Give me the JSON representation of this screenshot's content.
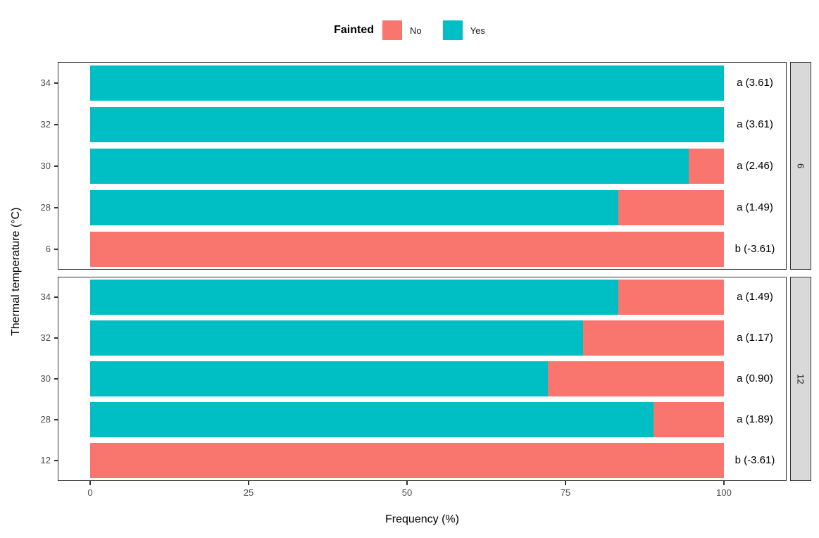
{
  "legend": {
    "title": "Fainted",
    "items": [
      {
        "label": "No",
        "color": "#F8766D"
      },
      {
        "label": "Yes",
        "color": "#00BFC4"
      }
    ]
  },
  "axes": {
    "y_title": "Thermal temperature (°C)",
    "x_title": "Frequency (%)",
    "x_ticks": [
      "0",
      "25",
      "50",
      "75",
      "100"
    ]
  },
  "chart_data": {
    "type": "bar",
    "orientation": "horizontal",
    "stacked": true,
    "unit": "percent",
    "xlim": [
      0,
      100
    ],
    "legend_position": "top",
    "series_colors": {
      "No": "#F8766D",
      "Yes": "#00BFC4"
    },
    "facets": [
      {
        "strip": "6",
        "categories": [
          "34",
          "32",
          "30",
          "28",
          "6"
        ],
        "series": [
          {
            "name": "Yes",
            "values": [
              100,
              100,
              94.4,
              83.3,
              0
            ]
          },
          {
            "name": "No",
            "values": [
              0,
              0,
              5.6,
              16.7,
              100
            ]
          }
        ],
        "annotations": [
          "a (3.61)",
          "a (3.61)",
          "a (2.46)",
          "a (1.49)",
          "b (-3.61)"
        ]
      },
      {
        "strip": "12",
        "categories": [
          "34",
          "32",
          "30",
          "28",
          "12"
        ],
        "series": [
          {
            "name": "Yes",
            "values": [
              83.3,
              77.8,
              72.2,
              88.9,
              0
            ]
          },
          {
            "name": "No",
            "values": [
              16.7,
              22.2,
              27.8,
              11.1,
              100
            ]
          }
        ],
        "annotations": [
          "a (1.49)",
          "a (1.17)",
          "a (0.90)",
          "a (1.89)",
          "b (-3.61)"
        ]
      }
    ]
  }
}
